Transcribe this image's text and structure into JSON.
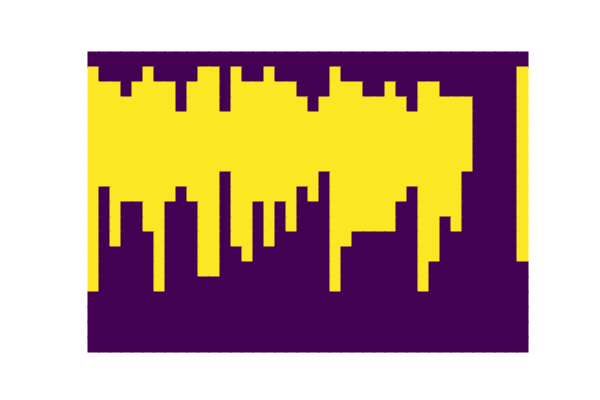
{
  "chart_data": {
    "type": "heatmap",
    "tick_labels": false,
    "cells": [
      [
        0,
        0,
        0,
        0,
        0,
        0,
        0,
        0,
        0,
        0,
        0,
        0,
        0,
        0,
        0,
        0,
        0,
        0,
        0,
        0,
        0,
        0,
        0,
        0,
        0,
        0,
        0,
        0,
        0,
        0,
        0,
        0,
        0,
        0,
        0,
        0,
        0,
        0,
        0,
        0
      ],
      [
        1,
        0,
        0,
        0,
        0,
        1,
        0,
        0,
        0,
        0,
        1,
        1,
        0,
        1,
        0,
        0,
        1,
        0,
        0,
        0,
        0,
        0,
        1,
        0,
        0,
        0,
        0,
        0,
        0,
        0,
        0,
        0,
        0,
        0,
        0,
        0,
        0,
        0,
        0,
        1
      ],
      [
        1,
        1,
        1,
        0,
        1,
        1,
        1,
        1,
        0,
        1,
        1,
        1,
        0,
        1,
        1,
        1,
        1,
        1,
        1,
        0,
        0,
        0,
        1,
        1,
        1,
        0,
        0,
        1,
        0,
        0,
        1,
        1,
        0,
        0,
        0,
        0,
        0,
        0,
        0,
        1
      ],
      [
        1,
        1,
        1,
        1,
        1,
        1,
        1,
        1,
        0,
        1,
        1,
        1,
        0,
        1,
        1,
        1,
        1,
        1,
        1,
        1,
        0,
        1,
        1,
        1,
        1,
        1,
        1,
        1,
        1,
        0,
        1,
        1,
        1,
        1,
        1,
        0,
        0,
        0,
        0,
        1
      ],
      [
        1,
        1,
        1,
        1,
        1,
        1,
        1,
        1,
        1,
        1,
        1,
        1,
        1,
        1,
        1,
        1,
        1,
        1,
        1,
        1,
        1,
        1,
        1,
        1,
        1,
        1,
        1,
        1,
        1,
        1,
        1,
        1,
        1,
        1,
        1,
        0,
        0,
        0,
        0,
        1
      ],
      [
        1,
        1,
        1,
        1,
        1,
        1,
        1,
        1,
        1,
        1,
        1,
        1,
        1,
        1,
        1,
        1,
        1,
        1,
        1,
        1,
        1,
        1,
        1,
        1,
        1,
        1,
        1,
        1,
        1,
        1,
        1,
        1,
        1,
        1,
        1,
        0,
        0,
        0,
        0,
        1
      ],
      [
        1,
        1,
        1,
        1,
        1,
        1,
        1,
        1,
        1,
        1,
        1,
        1,
        1,
        1,
        1,
        1,
        1,
        1,
        1,
        1,
        1,
        1,
        1,
        1,
        1,
        1,
        1,
        1,
        1,
        1,
        1,
        1,
        1,
        1,
        1,
        0,
        0,
        0,
        0,
        1
      ],
      [
        1,
        1,
        1,
        1,
        1,
        1,
        1,
        1,
        1,
        1,
        1,
        1,
        1,
        1,
        1,
        1,
        1,
        1,
        1,
        1,
        1,
        1,
        1,
        1,
        1,
        1,
        1,
        1,
        1,
        1,
        1,
        1,
        1,
        1,
        1,
        0,
        0,
        0,
        0,
        1
      ],
      [
        1,
        1,
        1,
        1,
        1,
        1,
        1,
        1,
        1,
        1,
        1,
        1,
        0,
        1,
        1,
        1,
        1,
        1,
        1,
        1,
        1,
        0,
        1,
        1,
        1,
        1,
        1,
        1,
        1,
        1,
        1,
        1,
        1,
        1,
        0,
        0,
        0,
        0,
        0,
        1
      ],
      [
        1,
        0,
        1,
        1,
        1,
        1,
        1,
        1,
        0,
        1,
        1,
        1,
        0,
        1,
        1,
        1,
        1,
        1,
        1,
        0,
        1,
        0,
        1,
        1,
        1,
        1,
        1,
        1,
        1,
        0,
        1,
        1,
        1,
        1,
        0,
        0,
        0,
        0,
        0,
        1
      ],
      [
        1,
        0,
        1,
        0,
        0,
        1,
        1,
        0,
        0,
        0,
        1,
        1,
        0,
        1,
        1,
        0,
        1,
        0,
        1,
        0,
        0,
        0,
        1,
        1,
        1,
        1,
        1,
        1,
        0,
        0,
        1,
        1,
        1,
        1,
        0,
        0,
        0,
        0,
        0,
        1
      ],
      [
        1,
        0,
        1,
        0,
        0,
        1,
        1,
        0,
        0,
        0,
        1,
        1,
        0,
        1,
        1,
        0,
        1,
        0,
        1,
        0,
        0,
        0,
        1,
        1,
        1,
        1,
        1,
        1,
        0,
        0,
        1,
        1,
        0,
        1,
        0,
        0,
        0,
        0,
        0,
        1
      ],
      [
        1,
        0,
        1,
        0,
        0,
        0,
        1,
        0,
        0,
        0,
        1,
        1,
        0,
        1,
        1,
        0,
        1,
        0,
        0,
        0,
        0,
        0,
        1,
        1,
        0,
        0,
        0,
        0,
        0,
        0,
        1,
        1,
        0,
        0,
        0,
        0,
        0,
        0,
        0,
        1
      ],
      [
        1,
        0,
        0,
        0,
        0,
        0,
        1,
        0,
        0,
        0,
        1,
        1,
        0,
        0,
        1,
        0,
        0,
        0,
        0,
        0,
        0,
        0,
        1,
        0,
        0,
        0,
        0,
        0,
        0,
        0,
        1,
        1,
        0,
        0,
        0,
        0,
        0,
        0,
        0,
        1
      ],
      [
        1,
        0,
        0,
        0,
        0,
        0,
        1,
        0,
        0,
        0,
        1,
        1,
        0,
        0,
        0,
        0,
        0,
        0,
        0,
        0,
        0,
        0,
        1,
        0,
        0,
        0,
        0,
        0,
        0,
        0,
        1,
        0,
        0,
        0,
        0,
        0,
        0,
        0,
        0,
        0
      ],
      [
        1,
        0,
        0,
        0,
        0,
        0,
        1,
        0,
        0,
        0,
        0,
        0,
        0,
        0,
        0,
        0,
        0,
        0,
        0,
        0,
        0,
        0,
        1,
        0,
        0,
        0,
        0,
        0,
        0,
        0,
        1,
        0,
        0,
        0,
        0,
        0,
        0,
        0,
        0,
        0
      ],
      [
        0,
        0,
        0,
        0,
        0,
        0,
        0,
        0,
        0,
        0,
        0,
        0,
        0,
        0,
        0,
        0,
        0,
        0,
        0,
        0,
        0,
        0,
        0,
        0,
        0,
        0,
        0,
        0,
        0,
        0,
        0,
        0,
        0,
        0,
        0,
        0,
        0,
        0,
        0,
        0
      ],
      [
        0,
        0,
        0,
        0,
        0,
        0,
        0,
        0,
        0,
        0,
        0,
        0,
        0,
        0,
        0,
        0,
        0,
        0,
        0,
        0,
        0,
        0,
        0,
        0,
        0,
        0,
        0,
        0,
        0,
        0,
        0,
        0,
        0,
        0,
        0,
        0,
        0,
        0,
        0,
        0
      ],
      [
        0,
        0,
        0,
        0,
        0,
        0,
        0,
        0,
        0,
        0,
        0,
        0,
        0,
        0,
        0,
        0,
        0,
        0,
        0,
        0,
        0,
        0,
        0,
        0,
        0,
        0,
        0,
        0,
        0,
        0,
        0,
        0,
        0,
        0,
        0,
        0,
        0,
        0,
        0,
        0
      ],
      [
        0,
        0,
        0,
        0,
        0,
        0,
        0,
        0,
        0,
        0,
        0,
        0,
        0,
        0,
        0,
        0,
        0,
        0,
        0,
        0,
        0,
        0,
        0,
        0,
        0,
        0,
        0,
        0,
        0,
        0,
        0,
        0,
        0,
        0,
        0,
        0,
        0,
        0,
        0,
        0
      ]
    ]
  }
}
